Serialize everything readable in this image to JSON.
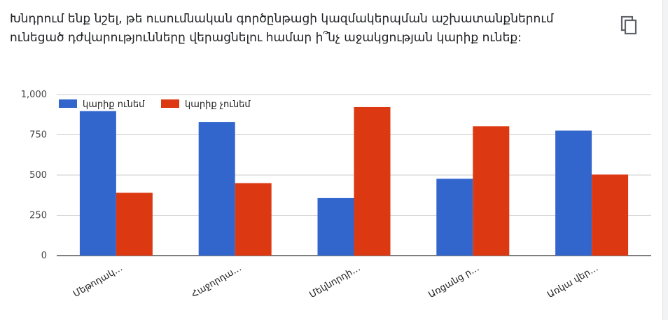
{
  "question": "Խնդրում ենք նշել, թե ուսումնական գործընթացի կազմակերպման աշխատանքներում ունեցած դժվարությունները վերացնելու համար ի՞նչ աջակցության կարիք ունեք:",
  "copy_icon": "copy-icon",
  "colors": {
    "series1": "#3366cc",
    "series2": "#dc3912",
    "grid": "#cccccc",
    "axis": "#333333"
  },
  "chart_data": {
    "type": "bar",
    "categories": [
      "Մեթոդակ…",
      "Հաջորդա…",
      "Մեկնորդի…",
      "Առցանց ր…",
      "Առկա վեր…"
    ],
    "series": [
      {
        "name": "կարիք ունեմ",
        "values": [
          897,
          830,
          357,
          477,
          776
        ]
      },
      {
        "name": "կարիք չունեմ",
        "values": [
          390,
          450,
          922,
          803,
          503
        ]
      }
    ],
    "yticks": [
      "0",
      "250",
      "500",
      "750",
      "1,000"
    ],
    "ylim": [
      0,
      1000
    ],
    "legend": "top-left",
    "grid": true
  }
}
